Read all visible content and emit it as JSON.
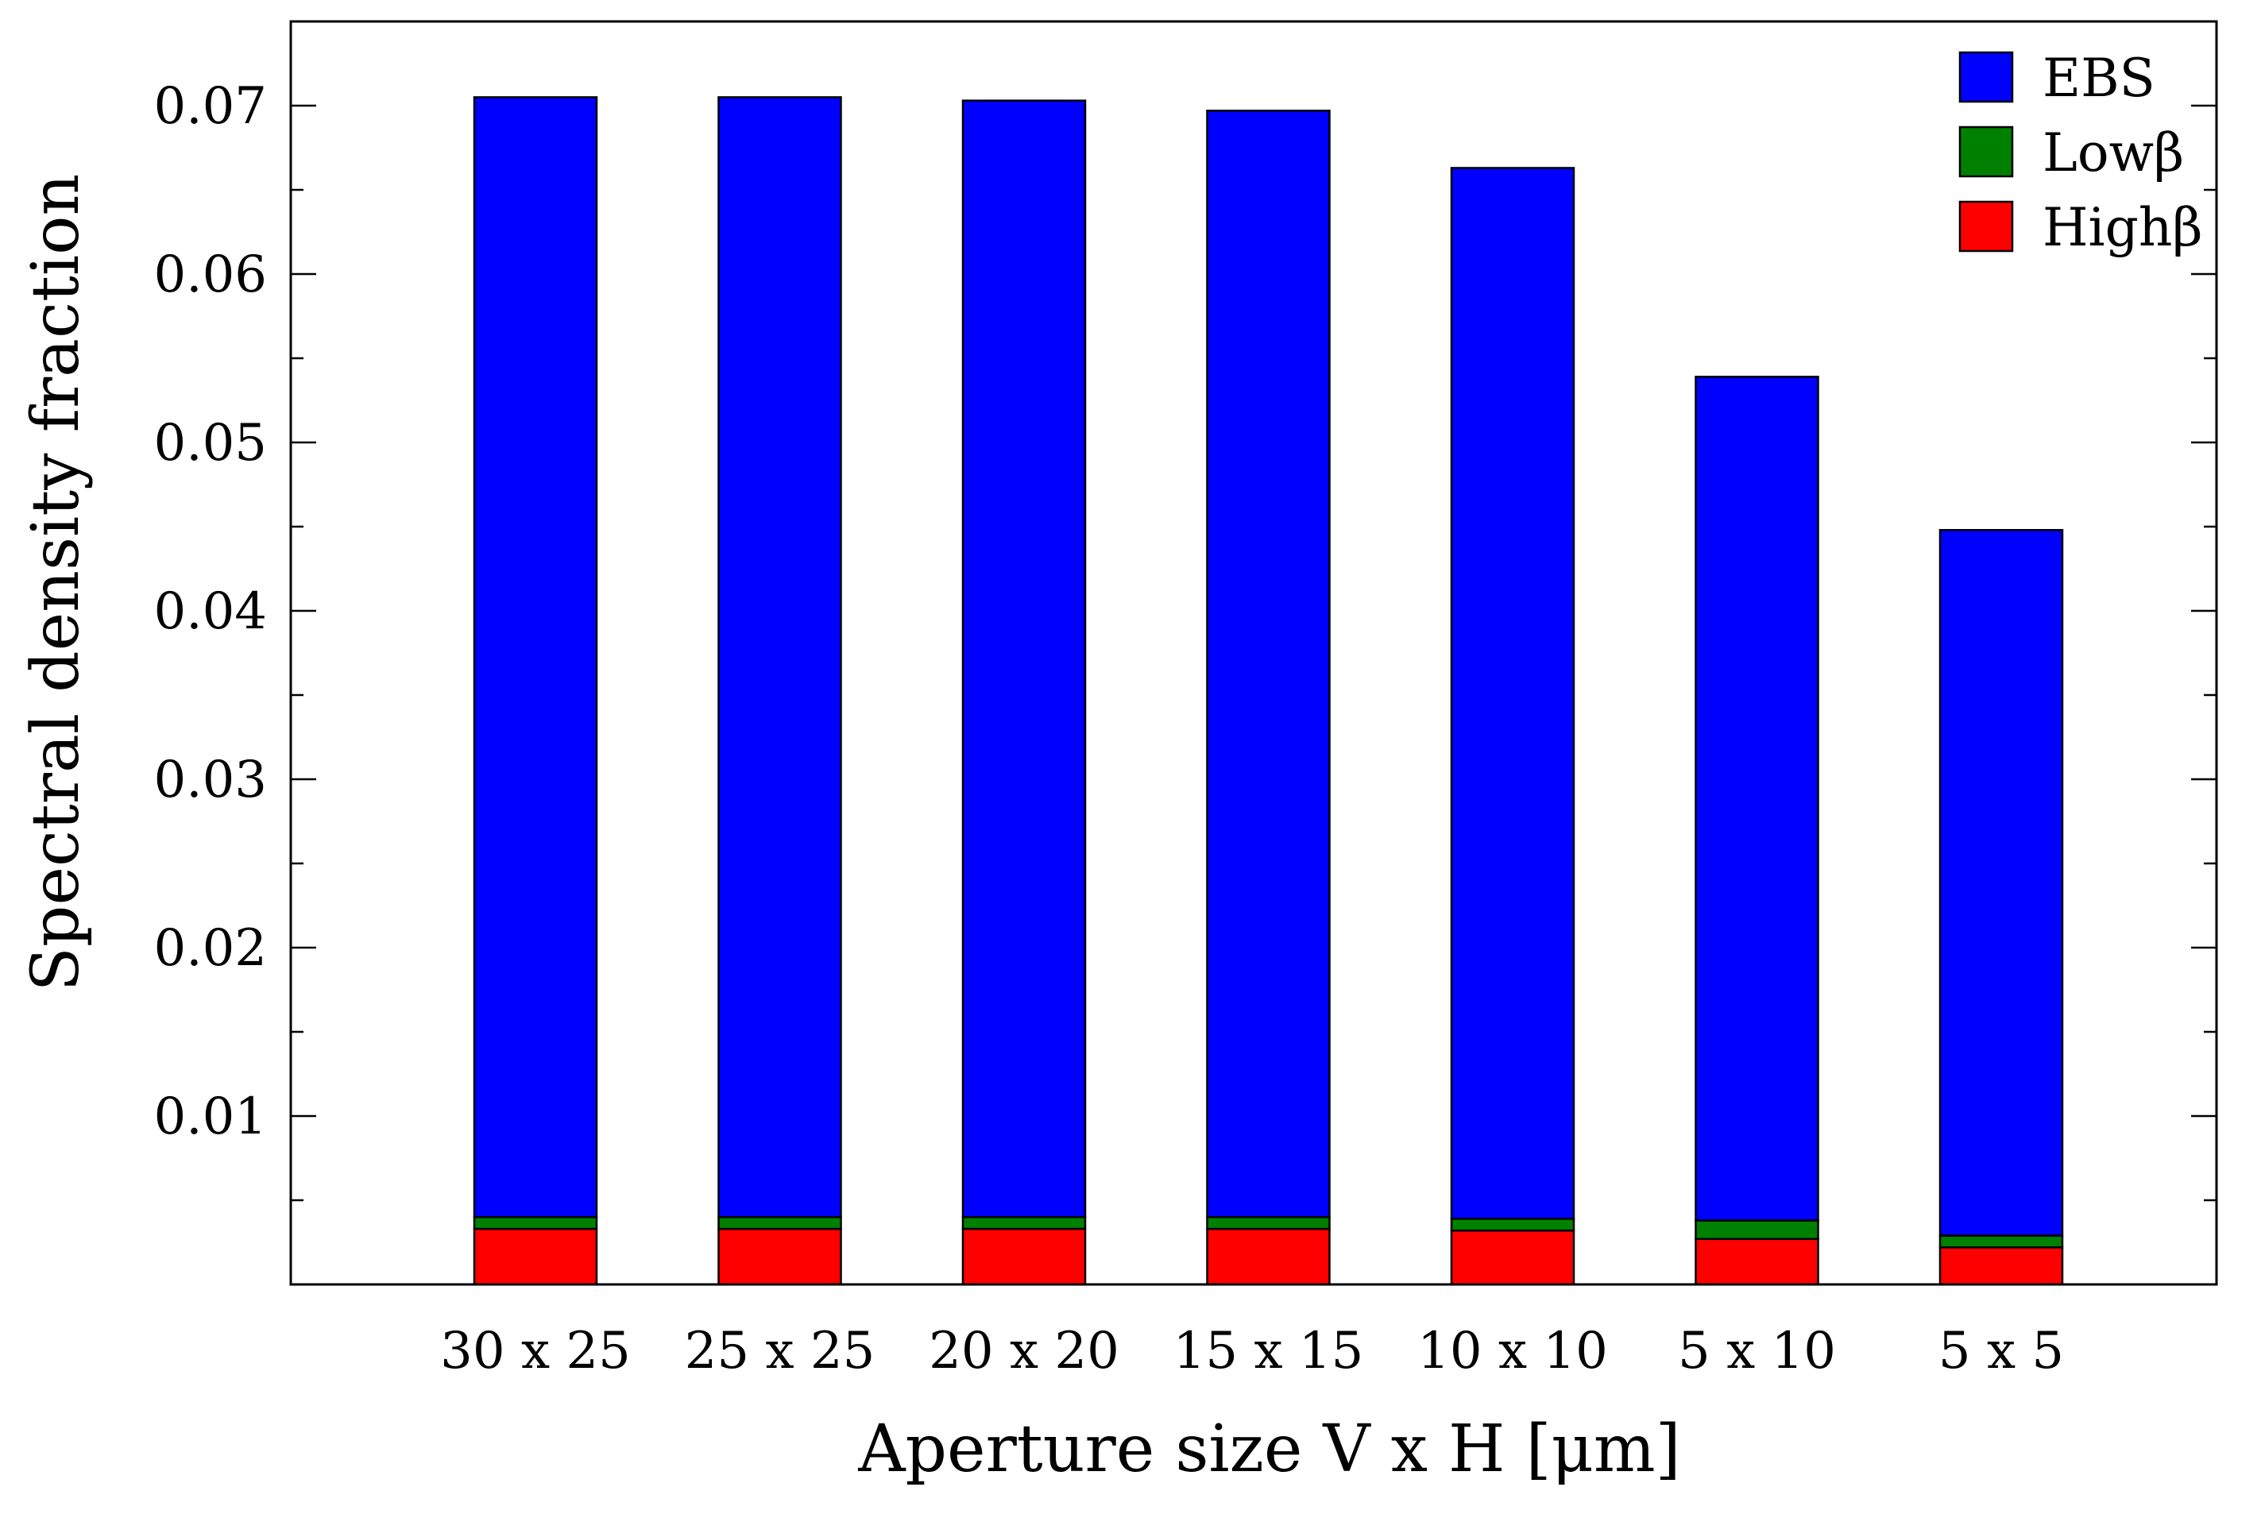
{
  "chart_data": {
    "type": "bar",
    "stacked": true,
    "xlabel": "Aperture size V x H [μm]",
    "ylabel": "Spectral density fraction",
    "categories": [
      "30 x 25",
      "25 x 25",
      "20 x 20",
      "15 x 15",
      "10 x 10",
      "5 x 10",
      "5 x 5"
    ],
    "ylim": [
      0,
      0.075
    ],
    "yticks": [
      0.01,
      0.02,
      0.03,
      0.04,
      0.05,
      0.06,
      0.07
    ],
    "ytick_labels": [
      "0.01",
      "0.02",
      "0.03",
      "0.04",
      "0.05",
      "0.06",
      "0.07"
    ],
    "grid": false,
    "legend_position": "top-right",
    "series": [
      {
        "name": "Highβ",
        "color": "#ff0000",
        "values": [
          0.0033,
          0.0033,
          0.0033,
          0.0033,
          0.0032,
          0.0027,
          0.0022
        ]
      },
      {
        "name": "Lowβ",
        "color": "#008000",
        "values": [
          0.0007,
          0.0007,
          0.0007,
          0.0007,
          0.0007,
          0.0011,
          0.0007
        ]
      },
      {
        "name": "EBS",
        "color": "#0000ff",
        "values": [
          0.0665,
          0.0665,
          0.0663,
          0.0657,
          0.0624,
          0.0501,
          0.0419
        ]
      }
    ],
    "legend_order": [
      "EBS",
      "Lowβ",
      "Highβ"
    ]
  }
}
